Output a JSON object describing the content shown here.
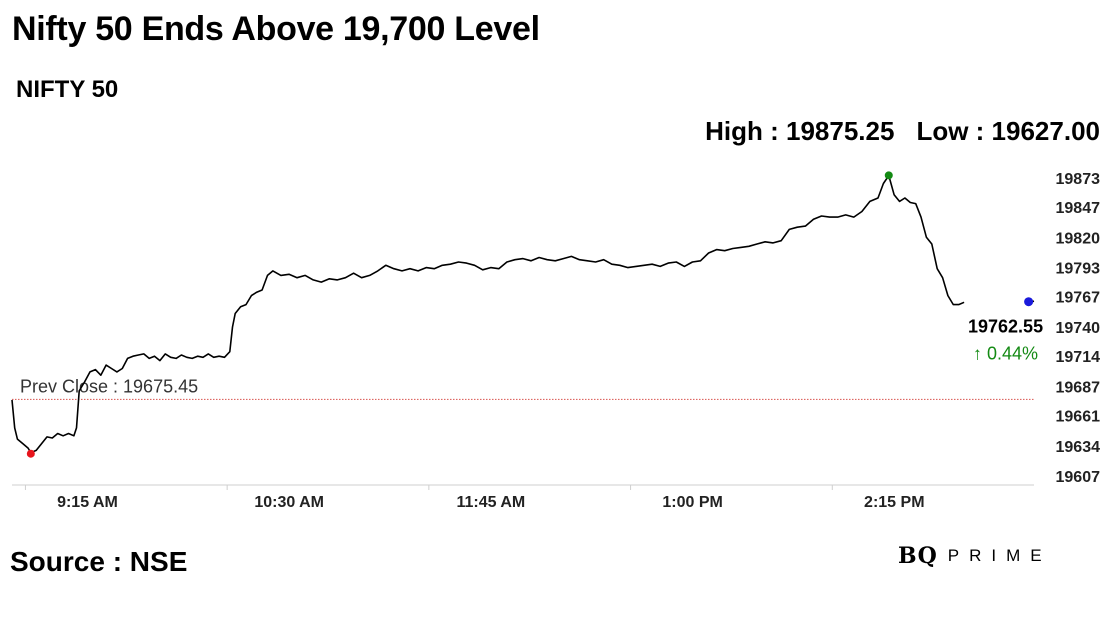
{
  "header": {
    "title": "Nifty 50 Ends Above 19,700 Level",
    "subtitle": "NIFTY 50",
    "high_label": "High : 19875.25",
    "low_label": "Low : 19627.00"
  },
  "footer": {
    "source": "Source : NSE",
    "logo_main": "BQ",
    "logo_sub": "PRIME"
  },
  "colors": {
    "line": "#000000",
    "high_marker": "#138a13",
    "low_marker": "#e8141c",
    "last_marker": "#1a1adb",
    "prev_close_line": "#d9534f",
    "positive_change": "#138a13"
  },
  "chart_data": {
    "type": "line",
    "title": "NIFTY 50",
    "xlabel": "",
    "ylabel": "",
    "x_tick_labels": [
      "9:15 AM",
      "10:30 AM",
      "11:45 AM",
      "1:00 PM",
      "2:15 PM"
    ],
    "x_tick_minutes": [
      555,
      630,
      705,
      780,
      855
    ],
    "xlim_minutes": [
      550,
      930
    ],
    "y_tick_labels": [
      "19873",
      "19847",
      "19820",
      "19793",
      "19767",
      "19740",
      "19714",
      "19687",
      "19661",
      "19634",
      "19607"
    ],
    "ylim": [
      19600,
      19880
    ],
    "grid": false,
    "prev_close": 19675.45,
    "prev_close_label": "Prev Close : 19675.45",
    "last_value_label": "19762.55",
    "change_label": "↑ 0.44%",
    "high": {
      "time_minutes": 876,
      "value": 19875.25
    },
    "low": {
      "time_minutes": 557,
      "value": 19627.0
    },
    "last": {
      "time_minutes": 928,
      "value": 19762.55
    },
    "series": [
      {
        "x": [
          550,
          551,
          552,
          554,
          556,
          557,
          559,
          561,
          563,
          565,
          567,
          569,
          571,
          573,
          574,
          575,
          577,
          579,
          581,
          583,
          585,
          587,
          589,
          591,
          593,
          595,
          597,
          599,
          601,
          603,
          605,
          607,
          609,
          611,
          613,
          615,
          617,
          619,
          621,
          623,
          625,
          627,
          629,
          631,
          632,
          633,
          635,
          637,
          639,
          641,
          643,
          645,
          647,
          650,
          653,
          656,
          659,
          662,
          665,
          668,
          671,
          674,
          677,
          680,
          683,
          686,
          689,
          692,
          695,
          698,
          701,
          704,
          707,
          710,
          713,
          716,
          719,
          722,
          725,
          728,
          731,
          734,
          737,
          740,
          743,
          746,
          749,
          752,
          755,
          758,
          761,
          764,
          767,
          770,
          773,
          776,
          779,
          782,
          785,
          788,
          791,
          794,
          797,
          800,
          803,
          806,
          809,
          812,
          815,
          818,
          821,
          824,
          827,
          830,
          833,
          836,
          839,
          842,
          845,
          848,
          851,
          854,
          857,
          860,
          863,
          866,
          869,
          872,
          874,
          876,
          878,
          880,
          882,
          884,
          886,
          888,
          890,
          892,
          894,
          896,
          898,
          900,
          902,
          904
        ],
        "y": [
          19675,
          19650,
          19640,
          19636,
          19632,
          19628,
          19630,
          19636,
          19642,
          19641,
          19645,
          19643,
          19645,
          19643,
          19650,
          19683,
          19691,
          19700,
          19702,
          19697,
          19706,
          19703,
          19700,
          19703,
          19712,
          19714,
          19715,
          19716,
          19712,
          19714,
          19710,
          19716,
          19713,
          19712,
          19715,
          19713,
          19712,
          19714,
          19713,
          19716,
          19713,
          19714,
          19713,
          19718,
          19740,
          19752,
          19758,
          19760,
          19768,
          19771,
          19773,
          19786,
          19790,
          19786,
          19787,
          19784,
          19786,
          19782,
          19780,
          19783,
          19782,
          19784,
          19788,
          19784,
          19786,
          19790,
          19795,
          19792,
          19790,
          19792,
          19790,
          19793,
          19792,
          19795,
          19796,
          19798,
          19797,
          19795,
          19791,
          19793,
          19792,
          19798,
          19800,
          19801,
          19799,
          19802,
          19800,
          19799,
          19801,
          19803,
          19800,
          19799,
          19798,
          19800,
          19796,
          19795,
          19793,
          19794,
          19795,
          19796,
          19794,
          19797,
          19798,
          19794,
          19798,
          19799,
          19806,
          19809,
          19808,
          19810,
          19811,
          19812,
          19814,
          19816,
          19815,
          19817,
          19827,
          19829,
          19830,
          19836,
          19839,
          19838,
          19838,
          19840,
          19838,
          19843,
          19852,
          19855,
          19868,
          19875,
          19858,
          19852,
          19855,
          19851,
          19850,
          19838,
          19820,
          19814,
          19792,
          19784,
          19768,
          19760,
          19760,
          19762
        ]
      },
      {
        "x": [
          927,
          928,
          930
        ],
        "y": [
          19765,
          19762,
          19763
        ]
      }
    ]
  }
}
